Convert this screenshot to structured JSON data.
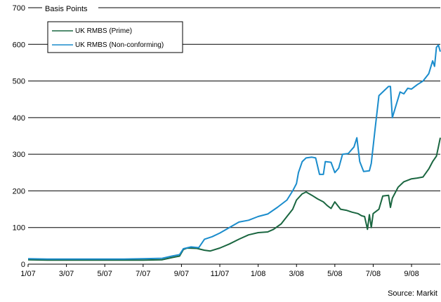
{
  "chart_data": {
    "type": "line",
    "title": "",
    "ylabel": "Basis Points",
    "xlabel": "",
    "source": "Source: Markit",
    "ylim": [
      0,
      700
    ],
    "yticks": [
      0,
      100,
      200,
      300,
      400,
      500,
      600,
      700
    ],
    "xlim": [
      0,
      21.5
    ],
    "xticks": [
      {
        "pos": 0,
        "label": "1/07"
      },
      {
        "pos": 2,
        "label": "3/07"
      },
      {
        "pos": 4,
        "label": "5/07"
      },
      {
        "pos": 6,
        "label": "7/07"
      },
      {
        "pos": 8,
        "label": "9/07"
      },
      {
        "pos": 10,
        "label": "11/07"
      },
      {
        "pos": 12,
        "label": "1/08"
      },
      {
        "pos": 14,
        "label": "3/08"
      },
      {
        "pos": 16,
        "label": "5/08"
      },
      {
        "pos": 18,
        "label": "7/08"
      },
      {
        "pos": 20,
        "label": "9/08"
      }
    ],
    "grid": true,
    "legend_position": "top-left",
    "colors": {
      "prime": "#1a6640",
      "nonconforming": "#1a8ccc"
    },
    "series": [
      {
        "name": "UK RMBS  (Prime)",
        "color": "#1a6640",
        "points": [
          [
            0,
            12
          ],
          [
            1,
            11
          ],
          [
            2,
            11
          ],
          [
            3,
            11
          ],
          [
            4,
            11
          ],
          [
            5,
            11
          ],
          [
            6,
            11
          ],
          [
            7,
            12
          ],
          [
            7.5,
            18
          ],
          [
            7.9,
            22
          ],
          [
            8.1,
            40
          ],
          [
            8.3,
            44
          ],
          [
            8.8,
            43
          ],
          [
            9.2,
            38
          ],
          [
            9.5,
            36
          ],
          [
            10,
            44
          ],
          [
            10.5,
            55
          ],
          [
            11,
            68
          ],
          [
            11.5,
            80
          ],
          [
            12,
            86
          ],
          [
            12.5,
            88
          ],
          [
            12.8,
            95
          ],
          [
            13.2,
            110
          ],
          [
            13.5,
            130
          ],
          [
            13.8,
            150
          ],
          [
            14,
            175
          ],
          [
            14.3,
            192
          ],
          [
            14.5,
            197
          ],
          [
            14.8,
            188
          ],
          [
            15.1,
            178
          ],
          [
            15.4,
            170
          ],
          [
            15.6,
            160
          ],
          [
            15.8,
            152
          ],
          [
            16,
            170
          ],
          [
            16.3,
            150
          ],
          [
            16.6,
            147
          ],
          [
            16.9,
            142
          ],
          [
            17.2,
            138
          ],
          [
            17.4,
            132
          ],
          [
            17.55,
            130
          ],
          [
            17.7,
            95
          ],
          [
            17.8,
            135
          ],
          [
            17.9,
            100
          ],
          [
            18,
            138
          ],
          [
            18.3,
            150
          ],
          [
            18.5,
            186
          ],
          [
            18.8,
            188
          ],
          [
            18.9,
            155
          ],
          [
            19,
            180
          ],
          [
            19.3,
            210
          ],
          [
            19.6,
            225
          ],
          [
            20,
            233
          ],
          [
            20.3,
            235
          ],
          [
            20.6,
            238
          ],
          [
            20.9,
            260
          ],
          [
            21.1,
            280
          ],
          [
            21.3,
            295
          ],
          [
            21.4,
            320
          ],
          [
            21.5,
            345
          ]
        ]
      },
      {
        "name": "UK RMBS  (Non-conforming)",
        "color": "#1a8ccc",
        "points": [
          [
            0,
            15
          ],
          [
            1,
            14
          ],
          [
            2,
            14
          ],
          [
            3,
            14
          ],
          [
            4,
            14
          ],
          [
            5,
            14
          ],
          [
            6,
            15
          ],
          [
            7,
            16
          ],
          [
            7.5,
            22
          ],
          [
            7.9,
            26
          ],
          [
            8.1,
            42
          ],
          [
            8.5,
            47
          ],
          [
            8.9,
            45
          ],
          [
            9.2,
            68
          ],
          [
            9.6,
            75
          ],
          [
            10,
            85
          ],
          [
            10.5,
            100
          ],
          [
            11,
            115
          ],
          [
            11.5,
            120
          ],
          [
            12,
            130
          ],
          [
            12.5,
            137
          ],
          [
            13,
            155
          ],
          [
            13.5,
            175
          ],
          [
            13.8,
            200
          ],
          [
            14,
            220
          ],
          [
            14.1,
            250
          ],
          [
            14.3,
            280
          ],
          [
            14.5,
            290
          ],
          [
            14.8,
            292
          ],
          [
            15,
            290
          ],
          [
            15.2,
            245
          ],
          [
            15.4,
            245
          ],
          [
            15.5,
            280
          ],
          [
            15.8,
            278
          ],
          [
            16,
            250
          ],
          [
            16.2,
            262
          ],
          [
            16.4,
            300
          ],
          [
            16.7,
            302
          ],
          [
            17,
            320
          ],
          [
            17.15,
            345
          ],
          [
            17.3,
            280
          ],
          [
            17.5,
            253
          ],
          [
            17.8,
            255
          ],
          [
            17.9,
            275
          ],
          [
            18.1,
            370
          ],
          [
            18.3,
            460
          ],
          [
            18.6,
            475
          ],
          [
            18.8,
            485
          ],
          [
            18.9,
            485
          ],
          [
            19,
            400
          ],
          [
            19.2,
            435
          ],
          [
            19.4,
            470
          ],
          [
            19.6,
            465
          ],
          [
            19.8,
            480
          ],
          [
            20,
            478
          ],
          [
            20.3,
            490
          ],
          [
            20.6,
            500
          ],
          [
            20.9,
            520
          ],
          [
            21.1,
            555
          ],
          [
            21.2,
            540
          ],
          [
            21.3,
            592
          ],
          [
            21.4,
            598
          ],
          [
            21.5,
            580
          ]
        ]
      }
    ]
  }
}
